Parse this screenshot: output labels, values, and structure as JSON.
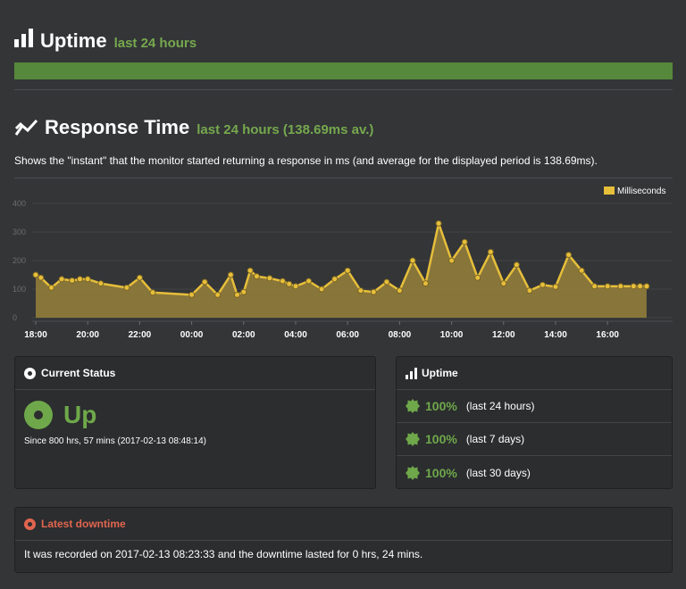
{
  "uptime": {
    "title": "Uptime",
    "subtitle": "last 24 hours",
    "bar_fraction": 1.0,
    "bar_color": "#56893b"
  },
  "response_time": {
    "title": "Response Time",
    "subtitle": "last 24 hours (138.69ms av.)",
    "description": "Shows the \"instant\" that the monitor started returning a response in ms (and average for the displayed period is 138.69ms)."
  },
  "chart_data": {
    "type": "area",
    "legend": "Milliseconds",
    "legend_position": "top-right",
    "y_ticks": [
      "400",
      "300",
      "200",
      "100",
      "0"
    ],
    "ylim": [
      0,
      400
    ],
    "x_ticks": [
      "18:00",
      "20:00",
      "22:00",
      "00:00",
      "02:00",
      "04:00",
      "06:00",
      "08:00",
      "10:00",
      "12:00",
      "14:00",
      "16:00"
    ],
    "x_hours": [
      0,
      0.2,
      0.6,
      1,
      1.4,
      1.7,
      2,
      2.5,
      3.5,
      4,
      4.5,
      6,
      6.5,
      7,
      7.5,
      7.75,
      8,
      8.25,
      8.5,
      9,
      9.5,
      9.75,
      10,
      10.5,
      11,
      11.5,
      12,
      12.5,
      13,
      13.5,
      14,
      14.5,
      15,
      15.5,
      16,
      16.5,
      17,
      17.5,
      18,
      18.5,
      19,
      19.5,
      20,
      20.5,
      21,
      21.5,
      22,
      22.5,
      23,
      23.25,
      23.5
    ],
    "values": [
      150,
      140,
      105,
      135,
      130,
      135,
      135,
      120,
      105,
      140,
      88,
      80,
      125,
      80,
      150,
      80,
      90,
      165,
      145,
      138,
      128,
      118,
      110,
      128,
      100,
      135,
      165,
      95,
      90,
      125,
      95,
      200,
      120,
      330,
      200,
      265,
      140,
      230,
      120,
      185,
      95,
      115,
      108,
      220,
      165,
      110,
      110,
      110,
      110,
      110,
      110
    ],
    "grid": true,
    "line_color": "#e6be3a",
    "fill_color": "#96803b"
  },
  "current_status": {
    "title": "Current Status",
    "state": "Up",
    "since": "Since 800 hrs, 57 mins (2017-02-13 08:48:14)",
    "color": "#6fa84a"
  },
  "uptime_panel": {
    "title": "Uptime",
    "rows": [
      {
        "pct": "100%",
        "period": "(last 24 hours)"
      },
      {
        "pct": "100%",
        "period": "(last 7 days)"
      },
      {
        "pct": "100%",
        "period": "(last 30 days)"
      }
    ]
  },
  "latest_downtime": {
    "title": "Latest downtime",
    "text": "It was recorded on 2017-02-13 08:23:33 and the downtime lasted for 0 hrs, 24 mins.",
    "color": "#e2654f"
  }
}
